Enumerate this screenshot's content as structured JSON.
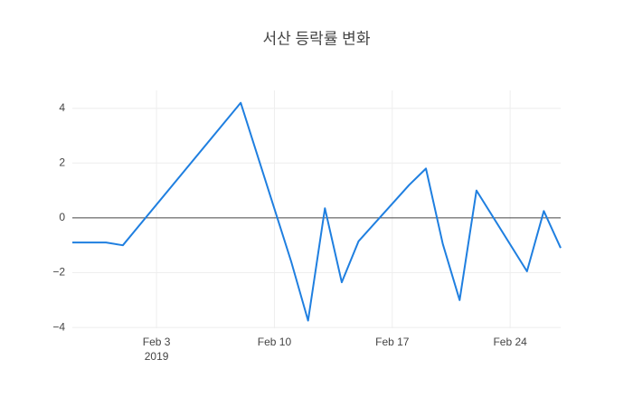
{
  "chart_data": {
    "type": "line",
    "title": "서산 등락률 변화",
    "x": [
      "2019-01-29",
      "2019-01-31",
      "2019-02-01",
      "2019-02-08",
      "2019-02-11",
      "2019-02-12",
      "2019-02-13",
      "2019-02-14",
      "2019-02-15",
      "2019-02-18",
      "2019-02-19",
      "2019-02-20",
      "2019-02-21",
      "2019-02-22",
      "2019-02-25",
      "2019-02-26",
      "2019-02-27"
    ],
    "series": [
      {
        "color": "#1f7fe0",
        "values": [
          -0.9,
          -0.9,
          -1.0,
          4.2,
          -1.6,
          -3.75,
          0.35,
          -2.35,
          -0.85,
          1.2,
          1.8,
          -0.95,
          -3.0,
          1.0,
          -1.95,
          0.25,
          -1.1
        ]
      }
    ],
    "xlim": [
      "2019-01-29",
      "2019-02-27"
    ],
    "xticks": [
      {
        "value": "2019-02-03",
        "label": "Feb 3"
      },
      {
        "value": "2019-02-10",
        "label": "Feb 10"
      },
      {
        "value": "2019-02-17",
        "label": "Feb 17"
      },
      {
        "value": "2019-02-24",
        "label": "Feb 24"
      }
    ],
    "x_year_label": "2019",
    "ylim": [
      -4.03,
      4.65
    ],
    "yticks": [
      {
        "value": -4,
        "label": "−4"
      },
      {
        "value": -2,
        "label": "−2"
      },
      0,
      2,
      4
    ],
    "grid": true,
    "zeroline": true
  }
}
